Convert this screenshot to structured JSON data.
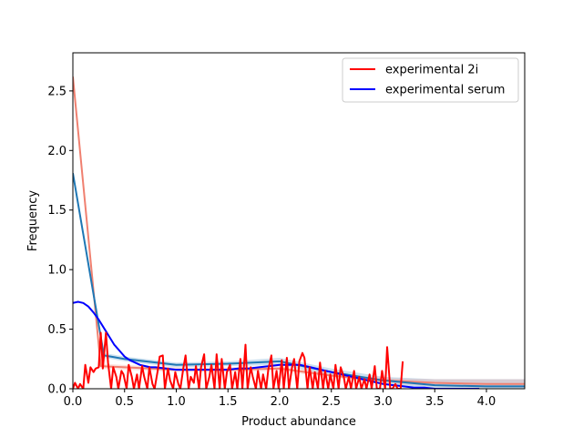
{
  "chart_data": {
    "type": "line",
    "xlabel": "Product abundance",
    "ylabel": "Frequency",
    "xlim": [
      0,
      4.37
    ],
    "ylim": [
      0,
      2.82
    ],
    "x_ticks": [
      0.0,
      0.5,
      1.0,
      1.5,
      2.0,
      2.5,
      3.0,
      3.5,
      4.0
    ],
    "x_tick_labels": [
      "0.0",
      "0.5",
      "1.0",
      "1.5",
      "2.0",
      "2.5",
      "3.0",
      "3.5",
      "4.0"
    ],
    "y_ticks": [
      0.0,
      0.5,
      1.0,
      1.5,
      2.0,
      2.5
    ],
    "y_tick_labels": [
      "0.0",
      "0.5",
      "1.0",
      "1.5",
      "2.0",
      "2.5"
    ],
    "legend_position": "top-right",
    "legend": [
      {
        "name": "experimental 2i",
        "color": "#ff0000"
      },
      {
        "name": "experimental serum",
        "color": "#0000ff"
      }
    ],
    "series": [
      {
        "name": "experimental 2i",
        "color": "#ff0000",
        "points": [
          [
            0.0,
            0.0
          ],
          [
            0.02,
            0.05
          ],
          [
            0.05,
            0.0
          ],
          [
            0.07,
            0.04
          ],
          [
            0.1,
            0.0
          ],
          [
            0.12,
            0.2
          ],
          [
            0.15,
            0.05
          ],
          [
            0.17,
            0.18
          ],
          [
            0.2,
            0.14
          ],
          [
            0.22,
            0.17
          ],
          [
            0.25,
            0.18
          ],
          [
            0.27,
            0.47
          ],
          [
            0.29,
            0.17
          ],
          [
            0.32,
            0.47
          ],
          [
            0.34,
            0.22
          ],
          [
            0.37,
            0.0
          ],
          [
            0.39,
            0.18
          ],
          [
            0.42,
            0.1
          ],
          [
            0.44,
            0.0
          ],
          [
            0.47,
            0.15
          ],
          [
            0.49,
            0.12
          ],
          [
            0.52,
            0.0
          ],
          [
            0.54,
            0.2
          ],
          [
            0.57,
            0.1
          ],
          [
            0.59,
            0.0
          ],
          [
            0.62,
            0.12
          ],
          [
            0.64,
            0.0
          ],
          [
            0.67,
            0.19
          ],
          [
            0.69,
            0.1
          ],
          [
            0.72,
            0.0
          ],
          [
            0.74,
            0.18
          ],
          [
            0.77,
            0.04
          ],
          [
            0.79,
            0.0
          ],
          [
            0.82,
            0.15
          ],
          [
            0.84,
            0.27
          ],
          [
            0.87,
            0.28
          ],
          [
            0.89,
            0.0
          ],
          [
            0.92,
            0.17
          ],
          [
            0.94,
            0.07
          ],
          [
            0.97,
            0.0
          ],
          [
            0.99,
            0.14
          ],
          [
            1.02,
            0.04
          ],
          [
            1.04,
            0.0
          ],
          [
            1.07,
            0.18
          ],
          [
            1.09,
            0.28
          ],
          [
            1.12,
            0.0
          ],
          [
            1.14,
            0.1
          ],
          [
            1.17,
            0.05
          ],
          [
            1.19,
            0.19
          ],
          [
            1.22,
            0.0
          ],
          [
            1.24,
            0.18
          ],
          [
            1.27,
            0.29
          ],
          [
            1.29,
            0.0
          ],
          [
            1.32,
            0.1
          ],
          [
            1.34,
            0.2
          ],
          [
            1.37,
            0.0
          ],
          [
            1.39,
            0.29
          ],
          [
            1.42,
            0.0
          ],
          [
            1.44,
            0.25
          ],
          [
            1.47,
            0.0
          ],
          [
            1.49,
            0.14
          ],
          [
            1.52,
            0.2
          ],
          [
            1.54,
            0.0
          ],
          [
            1.57,
            0.14
          ],
          [
            1.59,
            0.0
          ],
          [
            1.62,
            0.25
          ],
          [
            1.64,
            0.0
          ],
          [
            1.67,
            0.37
          ],
          [
            1.69,
            0.0
          ],
          [
            1.72,
            0.18
          ],
          [
            1.74,
            0.1
          ],
          [
            1.77,
            0.0
          ],
          [
            1.79,
            0.15
          ],
          [
            1.82,
            0.0
          ],
          [
            1.84,
            0.12
          ],
          [
            1.87,
            0.0
          ],
          [
            1.89,
            0.16
          ],
          [
            1.92,
            0.28
          ],
          [
            1.94,
            0.0
          ],
          [
            1.97,
            0.15
          ],
          [
            1.99,
            0.0
          ],
          [
            2.02,
            0.24
          ],
          [
            2.04,
            0.0
          ],
          [
            2.07,
            0.26
          ],
          [
            2.09,
            0.0
          ],
          [
            2.12,
            0.18
          ],
          [
            2.14,
            0.25
          ],
          [
            2.17,
            0.0
          ],
          [
            2.19,
            0.23
          ],
          [
            2.22,
            0.3
          ],
          [
            2.24,
            0.26
          ],
          [
            2.27,
            0.0
          ],
          [
            2.29,
            0.18
          ],
          [
            2.32,
            0.0
          ],
          [
            2.34,
            0.14
          ],
          [
            2.37,
            0.0
          ],
          [
            2.39,
            0.22
          ],
          [
            2.42,
            0.0
          ],
          [
            2.44,
            0.15
          ],
          [
            2.47,
            0.0
          ],
          [
            2.49,
            0.12
          ],
          [
            2.52,
            0.0
          ],
          [
            2.54,
            0.2
          ],
          [
            2.57,
            0.0
          ],
          [
            2.59,
            0.18
          ],
          [
            2.62,
            0.1
          ],
          [
            2.64,
            0.0
          ],
          [
            2.67,
            0.1
          ],
          [
            2.69,
            0.0
          ],
          [
            2.72,
            0.15
          ],
          [
            2.74,
            0.0
          ],
          [
            2.77,
            0.1
          ],
          [
            2.79,
            0.0
          ],
          [
            2.82,
            0.08
          ],
          [
            2.84,
            0.0
          ],
          [
            2.87,
            0.12
          ],
          [
            2.89,
            0.0
          ],
          [
            2.92,
            0.19
          ],
          [
            2.94,
            0.0
          ],
          [
            2.97,
            0.0
          ],
          [
            2.99,
            0.15
          ],
          [
            3.02,
            0.0
          ],
          [
            3.04,
            0.35
          ],
          [
            3.07,
            0.0
          ],
          [
            3.09,
            0.0
          ],
          [
            3.12,
            0.04
          ],
          [
            3.14,
            0.0
          ],
          [
            3.17,
            0.0
          ],
          [
            3.19,
            0.23
          ]
        ]
      },
      {
        "name": "experimental serum",
        "color": "#0000ff",
        "points": [
          [
            0.0,
            0.72
          ],
          [
            0.05,
            0.73
          ],
          [
            0.1,
            0.72
          ],
          [
            0.15,
            0.69
          ],
          [
            0.2,
            0.64
          ],
          [
            0.25,
            0.58
          ],
          [
            0.3,
            0.51
          ],
          [
            0.35,
            0.44
          ],
          [
            0.4,
            0.37
          ],
          [
            0.45,
            0.32
          ],
          [
            0.5,
            0.27
          ],
          [
            0.55,
            0.24
          ],
          [
            0.6,
            0.22
          ],
          [
            0.65,
            0.2
          ],
          [
            0.7,
            0.19
          ],
          [
            0.75,
            0.18
          ],
          [
            0.8,
            0.18
          ],
          [
            0.9,
            0.17
          ],
          [
            1.0,
            0.16
          ],
          [
            1.1,
            0.16
          ],
          [
            1.2,
            0.16
          ],
          [
            1.3,
            0.16
          ],
          [
            1.4,
            0.16
          ],
          [
            1.5,
            0.16
          ],
          [
            1.6,
            0.17
          ],
          [
            1.7,
            0.17
          ],
          [
            1.8,
            0.18
          ],
          [
            1.9,
            0.19
          ],
          [
            2.0,
            0.2
          ],
          [
            2.1,
            0.2
          ],
          [
            2.2,
            0.2
          ],
          [
            2.3,
            0.18
          ],
          [
            2.4,
            0.16
          ],
          [
            2.5,
            0.14
          ],
          [
            2.6,
            0.12
          ],
          [
            2.7,
            0.1
          ],
          [
            2.8,
            0.08
          ],
          [
            2.9,
            0.06
          ],
          [
            3.0,
            0.04
          ],
          [
            3.1,
            0.03
          ],
          [
            3.2,
            0.02
          ],
          [
            3.3,
            0.01
          ],
          [
            3.4,
            0.01
          ],
          [
            3.5,
            0.0
          ],
          [
            3.7,
            0.0
          ],
          [
            3.93,
            0.0
          ]
        ]
      },
      {
        "name": "",
        "color": "#f08070",
        "points": [
          [
            0.0,
            2.62
          ],
          [
            0.27,
            0.19
          ],
          [
            0.5,
            0.18
          ],
          [
            1.0,
            0.16
          ],
          [
            1.5,
            0.16
          ],
          [
            2.0,
            0.17
          ],
          [
            2.5,
            0.11
          ],
          [
            3.0,
            0.07
          ],
          [
            3.5,
            0.05
          ],
          [
            4.0,
            0.04
          ],
          [
            4.37,
            0.04
          ]
        ]
      },
      {
        "name": "",
        "color": "#1f77b4",
        "points": [
          [
            0.0,
            1.81
          ],
          [
            0.3,
            0.28
          ],
          [
            0.5,
            0.25
          ],
          [
            1.0,
            0.2
          ],
          [
            1.5,
            0.21
          ],
          [
            2.0,
            0.23
          ],
          [
            2.5,
            0.14
          ],
          [
            3.0,
            0.07
          ],
          [
            3.5,
            0.03
          ],
          [
            4.0,
            0.02
          ],
          [
            4.37,
            0.02
          ]
        ]
      }
    ],
    "bands": [
      {
        "color": "#1f77b4",
        "opacity": 0.22,
        "upper": [
          [
            0.3,
            0.3
          ],
          [
            0.5,
            0.27
          ],
          [
            1.0,
            0.22
          ],
          [
            1.5,
            0.23
          ],
          [
            2.0,
            0.26
          ],
          [
            2.5,
            0.17
          ],
          [
            3.0,
            0.1
          ],
          [
            3.5,
            0.08
          ],
          [
            4.0,
            0.08
          ],
          [
            4.37,
            0.08
          ]
        ],
        "lower": [
          [
            0.3,
            0.26
          ],
          [
            0.5,
            0.23
          ],
          [
            1.0,
            0.18
          ],
          [
            1.5,
            0.19
          ],
          [
            2.0,
            0.2
          ],
          [
            2.5,
            0.11
          ],
          [
            3.0,
            0.04
          ],
          [
            3.5,
            0.0
          ],
          [
            4.0,
            0.0
          ],
          [
            4.37,
            0.0
          ]
        ]
      },
      {
        "color": "#f08070",
        "opacity": 0.22,
        "upper": [
          [
            0.27,
            0.21
          ],
          [
            0.5,
            0.2
          ],
          [
            1.0,
            0.18
          ],
          [
            1.5,
            0.18
          ],
          [
            2.0,
            0.19
          ],
          [
            2.5,
            0.13
          ],
          [
            3.0,
            0.09
          ],
          [
            3.5,
            0.08
          ],
          [
            4.0,
            0.08
          ],
          [
            4.37,
            0.08
          ]
        ],
        "lower": [
          [
            0.27,
            0.17
          ],
          [
            0.5,
            0.16
          ],
          [
            1.0,
            0.14
          ],
          [
            1.5,
            0.14
          ],
          [
            2.0,
            0.15
          ],
          [
            2.5,
            0.09
          ],
          [
            3.0,
            0.05
          ],
          [
            3.5,
            0.02
          ],
          [
            4.0,
            0.01
          ],
          [
            4.37,
            0.01
          ]
        ]
      }
    ]
  }
}
